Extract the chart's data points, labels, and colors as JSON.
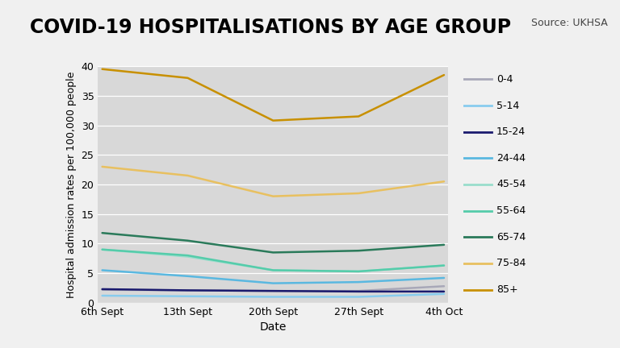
{
  "title": "COVID-19 HOSPITALISATIONS BY AGE GROUP",
  "source": "Source: UKHSA",
  "xlabel": "Date",
  "ylabel": "Hospital admission rates per 100,000 people",
  "x_labels": [
    "6th Sept",
    "13th Sept",
    "20th Sept",
    "27th Sept",
    "4th Oct"
  ],
  "ylim": [
    0,
    40
  ],
  "yticks": [
    0,
    5,
    10,
    15,
    20,
    25,
    30,
    35,
    40
  ],
  "series": [
    {
      "label": "0-4",
      "color": "#a8a8b8",
      "values": [
        2.2,
        2.1,
        2.0,
        2.0,
        2.8
      ]
    },
    {
      "label": "5-14",
      "color": "#88ccee",
      "values": [
        1.2,
        1.1,
        1.0,
        1.0,
        1.5
      ]
    },
    {
      "label": "15-24",
      "color": "#1a1a6e",
      "values": [
        2.3,
        2.1,
        2.0,
        1.9,
        1.9
      ]
    },
    {
      "label": "24-44",
      "color": "#5ab8e0",
      "values": [
        5.5,
        4.5,
        3.3,
        3.5,
        4.2
      ]
    },
    {
      "label": "45-54",
      "color": "#99ddcc",
      "values": [
        9.0,
        7.8,
        5.5,
        5.3,
        6.3
      ]
    },
    {
      "label": "55-64",
      "color": "#55ccaa",
      "values": [
        9.0,
        8.0,
        5.5,
        5.3,
        6.3
      ]
    },
    {
      "label": "65-74",
      "color": "#2a7a5a",
      "values": [
        11.8,
        10.5,
        8.5,
        8.8,
        9.8
      ]
    },
    {
      "label": "75-84",
      "color": "#e8c060",
      "values": [
        23.0,
        21.5,
        18.0,
        18.5,
        20.5
      ]
    },
    {
      "label": "85+",
      "color": "#c89000",
      "values": [
        39.5,
        38.0,
        30.8,
        31.5,
        38.5
      ]
    }
  ],
  "bg_color": "#f0f0f0",
  "plot_bg_color": "#d8d8d8",
  "left_bar_color": "#7a1515",
  "title_fontsize": 17,
  "axis_label_fontsize": 9,
  "tick_fontsize": 9,
  "legend_fontsize": 9,
  "source_fontsize": 9
}
